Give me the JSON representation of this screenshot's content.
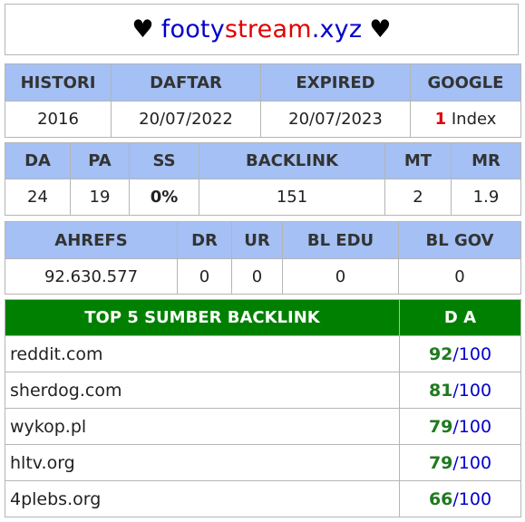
{
  "title": {
    "heart_left": "♥",
    "domain_part1": "footy",
    "domain_part2": "stream",
    "domain_part3": ".xyz",
    "heart_right": "♥"
  },
  "info_table": {
    "headers": [
      "HISTORI",
      "DAFTAR",
      "EXPIRED",
      "GOOGLE"
    ],
    "histori": "2016",
    "daftar": "20/07/2022",
    "expired": "20/07/2023",
    "google_count": "1",
    "google_label": " Index"
  },
  "metrics_table": {
    "headers": [
      "DA",
      "PA",
      "SS",
      "BACKLINK",
      "MT",
      "MR"
    ],
    "values": [
      "24",
      "19",
      "0%",
      "151",
      "2",
      "1.9"
    ]
  },
  "ahrefs_table": {
    "headers": [
      "AHREFS",
      "DR",
      "UR",
      "BL EDU",
      "BL GOV"
    ],
    "values": [
      "92.630.577",
      "0",
      "0",
      "0",
      "0"
    ]
  },
  "backlinks": {
    "header_source": "TOP 5 SUMBER BACKLINK",
    "header_da": "D A",
    "separator": "/",
    "items": [
      {
        "site": "reddit.com",
        "da": "92",
        "max": "100"
      },
      {
        "site": "sherdog.com",
        "da": "81",
        "max": "100"
      },
      {
        "site": "wykop.pl",
        "da": "79",
        "max": "100"
      },
      {
        "site": "hltv.org",
        "da": "79",
        "max": "100"
      },
      {
        "site": "4plebs.org",
        "da": "66",
        "max": "100"
      }
    ]
  },
  "colors": {
    "header_blue": "#a4c0f4",
    "header_green": "#008000",
    "domain_blue": "#0000cc",
    "domain_red": "#e00000",
    "ss_green": "#66cc33",
    "da_green": "#1f7a1f"
  }
}
